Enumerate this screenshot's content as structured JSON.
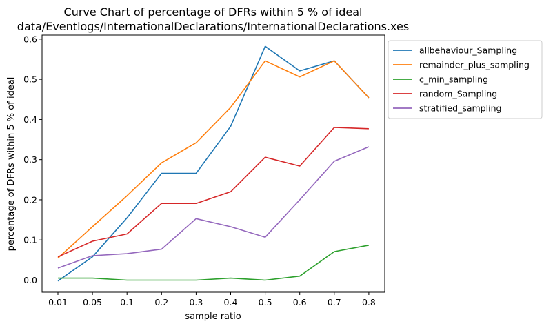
{
  "chart_data": {
    "type": "line",
    "title": "Curve Chart of percentage of DFRs within 5 % of ideal",
    "subtitle": "data/Eventlogs/InternationalDeclarations/InternationalDeclarations.xes",
    "xlabel": "sample ratio",
    "ylabel": "percentage of DFRs within 5 % of ideal",
    "categories": [
      "0.01",
      "0.05",
      "0.1",
      "0.2",
      "0.3",
      "0.4",
      "0.5",
      "0.6",
      "0.7",
      "0.8"
    ],
    "ylim": [
      -0.03,
      0.61
    ],
    "yticks": [
      "0.0",
      "0.1",
      "0.2",
      "0.3",
      "0.4",
      "0.5",
      "0.6"
    ],
    "grid": false,
    "legend": "outside-right",
    "series": [
      {
        "name": "allbehaviour_Sampling",
        "color": "#1f77b4",
        "values": [
          -0.002,
          0.058,
          0.155,
          0.266,
          0.266,
          0.383,
          0.582,
          0.521,
          0.546,
          0.454
        ]
      },
      {
        "name": "remainder_plus_sampling",
        "color": "#ff7f0e",
        "values": [
          0.055,
          0.133,
          0.21,
          0.292,
          0.342,
          0.43,
          0.546,
          0.506,
          0.546,
          0.454
        ]
      },
      {
        "name": "c_min_sampling",
        "color": "#2ca02c",
        "values": [
          0.005,
          0.005,
          0.0,
          0.0,
          0.0,
          0.005,
          0.0,
          0.01,
          0.071,
          0.087
        ]
      },
      {
        "name": "random_Sampling",
        "color": "#d62728",
        "values": [
          0.058,
          0.097,
          0.115,
          0.191,
          0.191,
          0.22,
          0.306,
          0.284,
          0.38,
          0.377
        ]
      },
      {
        "name": "stratified_sampling",
        "color": "#9467bd",
        "values": [
          0.03,
          0.061,
          0.066,
          0.077,
          0.153,
          0.133,
          0.107,
          0.2,
          0.296,
          0.332
        ]
      }
    ]
  }
}
